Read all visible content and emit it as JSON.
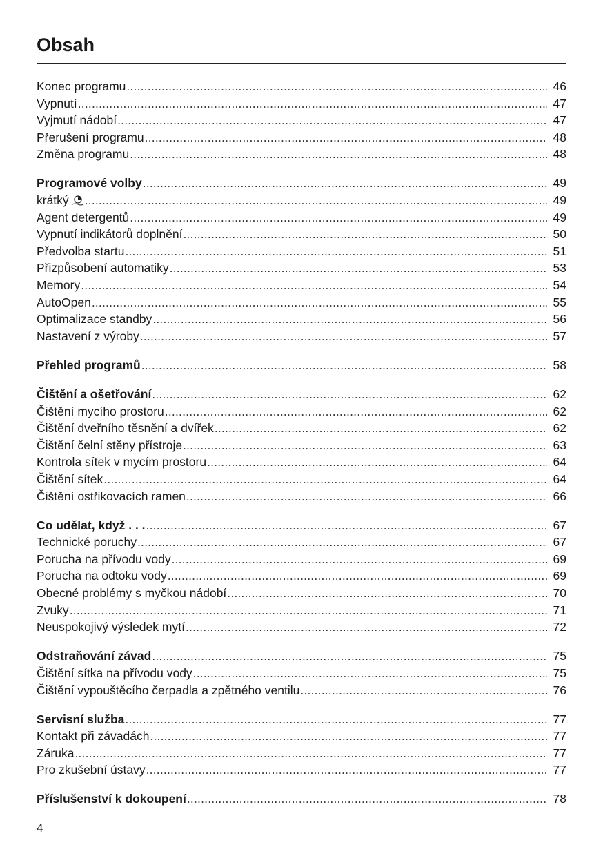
{
  "title": "Obsah",
  "page_number": "4",
  "sections": [
    {
      "entries": [
        {
          "label": "Konec programu",
          "page": "46",
          "bold": false
        },
        {
          "label": "Vypnutí",
          "page": "47",
          "bold": false
        },
        {
          "label": "Vyjmutí nádobí",
          "page": "47",
          "bold": false
        },
        {
          "label": "Přerušení programu",
          "page": "48",
          "bold": false
        },
        {
          "label": "Změna programu",
          "page": "48",
          "bold": false
        }
      ]
    },
    {
      "entries": [
        {
          "label": "Programové volby",
          "page": "49",
          "bold": true
        },
        {
          "label": "krátký",
          "page": "49",
          "bold": false,
          "icon": "short-program-clock-icon"
        },
        {
          "label": "Agent detergentů",
          "page": "49",
          "bold": false
        },
        {
          "label": "Vypnutí indikátorů doplnění",
          "page": "50",
          "bold": false
        },
        {
          "label": "Předvolba startu",
          "page": "51",
          "bold": false
        },
        {
          "label": "Přizpůsobení automatiky",
          "page": "53",
          "bold": false
        },
        {
          "label": "Memory",
          "page": "54",
          "bold": false
        },
        {
          "label": "AutoOpen",
          "page": "55",
          "bold": false
        },
        {
          "label": "Optimalizace standby",
          "page": "56",
          "bold": false
        },
        {
          "label": "Nastavení z výroby",
          "page": "57",
          "bold": false
        }
      ]
    },
    {
      "entries": [
        {
          "label": "Přehled programů",
          "page": "58",
          "bold": true
        }
      ]
    },
    {
      "entries": [
        {
          "label": "Čištění a ošetřování",
          "page": "62",
          "bold": true
        },
        {
          "label": "Čištění mycího prostoru",
          "page": "62",
          "bold": false
        },
        {
          "label": "Čištění dveřního těsnění a dvířek",
          "page": "62",
          "bold": false
        },
        {
          "label": "Čištění čelní stěny přístroje",
          "page": "63",
          "bold": false
        },
        {
          "label": "Kontrola sítek v mycím prostoru",
          "page": "64",
          "bold": false
        },
        {
          "label": "Čištění sítek",
          "page": "64",
          "bold": false
        },
        {
          "label": "Čištění ostřikovacích ramen",
          "page": "66",
          "bold": false
        }
      ]
    },
    {
      "entries": [
        {
          "label": "Co udělat, když . . .",
          "page": "67",
          "bold": true
        },
        {
          "label": "Technické poruchy",
          "page": "67",
          "bold": false
        },
        {
          "label": "Porucha na přívodu vody",
          "page": "69",
          "bold": false
        },
        {
          "label": "Porucha na odtoku vody",
          "page": "69",
          "bold": false
        },
        {
          "label": "Obecné problémy s myčkou nádobí",
          "page": "70",
          "bold": false
        },
        {
          "label": "Zvuky",
          "page": "71",
          "bold": false
        },
        {
          "label": "Neuspokojivý výsledek mytí",
          "page": "72",
          "bold": false
        }
      ]
    },
    {
      "entries": [
        {
          "label": "Odstraňování závad",
          "page": "75",
          "bold": true
        },
        {
          "label": "Čištění sítka na přívodu vody",
          "page": "75",
          "bold": false
        },
        {
          "label": "Čištění vypouštěcího čerpadla a zpětného ventilu",
          "page": "76",
          "bold": false
        }
      ]
    },
    {
      "entries": [
        {
          "label": "Servisní služba",
          "page": "77",
          "bold": true
        },
        {
          "label": "Kontakt při závadách",
          "page": "77",
          "bold": false
        },
        {
          "label": "Záruka",
          "page": "77",
          "bold": false
        },
        {
          "label": "Pro zkušební ústavy",
          "page": "77",
          "bold": false
        }
      ]
    },
    {
      "entries": [
        {
          "label": "Příslušenství k dokoupení",
          "page": "78",
          "bold": true
        }
      ]
    }
  ]
}
